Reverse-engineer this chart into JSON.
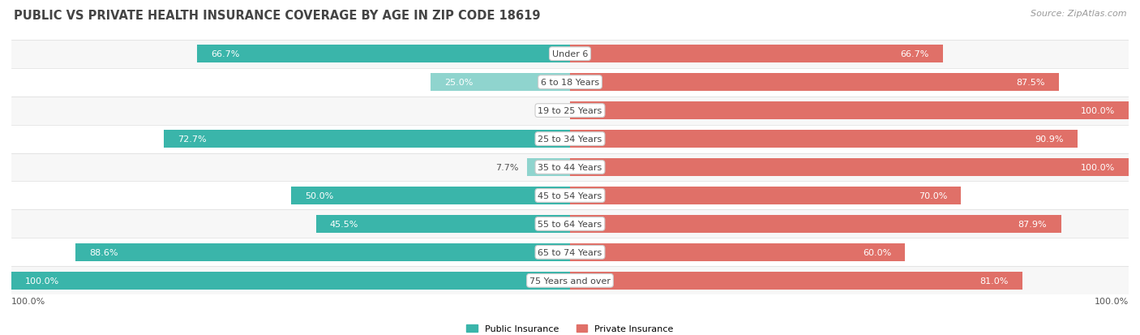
{
  "title": "PUBLIC VS PRIVATE HEALTH INSURANCE COVERAGE BY AGE IN ZIP CODE 18619",
  "source": "Source: ZipAtlas.com",
  "categories": [
    "Under 6",
    "6 to 18 Years",
    "19 to 25 Years",
    "25 to 34 Years",
    "35 to 44 Years",
    "45 to 54 Years",
    "55 to 64 Years",
    "65 to 74 Years",
    "75 Years and over"
  ],
  "public_values": [
    66.7,
    25.0,
    0.0,
    72.7,
    7.7,
    50.0,
    45.5,
    88.6,
    100.0
  ],
  "private_values": [
    66.7,
    87.5,
    100.0,
    90.9,
    100.0,
    70.0,
    87.9,
    60.0,
    81.0
  ],
  "public_color_dark": "#3ab5aa",
  "public_color_light": "#8fd4ce",
  "private_color_dark": "#e07068",
  "private_color_light": "#f0a8a3",
  "row_bg_even": "#f7f7f7",
  "row_bg_odd": "#ffffff",
  "max_value": 100.0,
  "legend_public": "Public Insurance",
  "legend_private": "Private Insurance",
  "title_fontsize": 10.5,
  "source_fontsize": 8,
  "label_fontsize": 8,
  "cat_fontsize": 8,
  "bar_height": 0.62,
  "figsize": [
    14.06,
    4.14
  ],
  "dpi": 100
}
